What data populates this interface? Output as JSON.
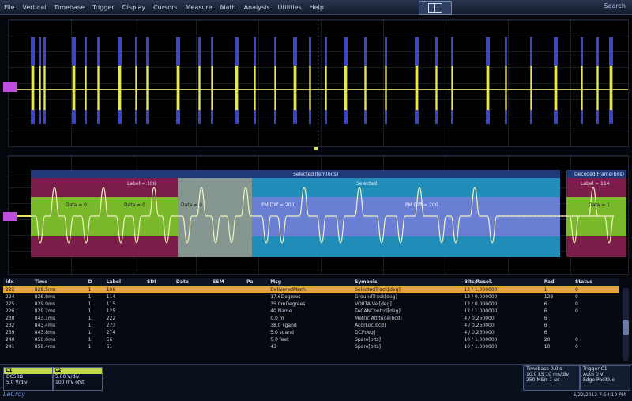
{
  "menu": {
    "items": [
      "File",
      "Vertical",
      "Timebase",
      "Trigger",
      "Display",
      "Cursors",
      "Measure",
      "Math",
      "Analysis",
      "Utilities",
      "Help"
    ],
    "search": "Search"
  },
  "colors": {
    "ch1": "#e6e65a",
    "ch2": "#3b46c8",
    "accent": "#e0a63a",
    "marker": "#c04dde"
  },
  "segments": {
    "top_label": "Selected Item[bits]",
    "right_label": "Decoded Frame[bits]",
    "label1": "Label = 106",
    "label2": "Label = 114",
    "data_a": "Data = 0",
    "data_b": "Data = 0",
    "data_c": "Data = 0",
    "data_d": "PM Diff = 200",
    "data_e": "PM Diff = 200",
    "sub_label": "Selected",
    "data_right": "Data = 1"
  },
  "table": {
    "headers": [
      "Idx",
      "Time",
      "D",
      "Label",
      "SDI",
      "Data",
      "SSM",
      "Pa",
      "Msg",
      "Symbols",
      "Bits/Resol.",
      "Pad",
      "Status"
    ],
    "rows": [
      [
        "222",
        "828.5ms",
        "1",
        "106",
        "",
        "",
        "",
        "",
        "DeliveredMach",
        "SelectedTrack[deg]",
        "12 / 1.000000",
        "1",
        "0"
      ],
      [
        "224",
        "828.8ms",
        "1",
        "114",
        "",
        "",
        "",
        "",
        "17.6Degrees",
        "GroundTrack[deg]",
        "12 / 0.000000",
        "128",
        "0"
      ],
      [
        "225",
        "829.0ms",
        "1",
        "115",
        "",
        "",
        "",
        "",
        "35.0mDegrees",
        "VORTA Vel[deg]",
        "12 / 0.000000",
        "6",
        "0"
      ],
      [
        "226",
        "829.2ms",
        "1",
        "125",
        "",
        "",
        "",
        "",
        "40 Name",
        "TACANControl[deg]",
        "12 / 1.000000",
        "6",
        "0"
      ],
      [
        "230",
        "843.1ms",
        "1",
        "222",
        "",
        "",
        "",
        "",
        "0.0 m",
        "Metric Altitude[bcd]",
        "4 / 0.250000",
        "6",
        ""
      ],
      [
        "232",
        "843.4ms",
        "1",
        "273",
        "",
        "",
        "",
        "",
        "38.0 sgand",
        "AcqrLoc[bcd]",
        "4 / 0.250000",
        "6",
        ""
      ],
      [
        "239",
        "843.8ms",
        "1",
        "274",
        "",
        "",
        "",
        "",
        "5.0 sgand",
        "DCPdeg]",
        "4 / 0.250000",
        "6",
        ""
      ],
      [
        "240",
        "850.0ms",
        "1",
        "56",
        "",
        "",
        "",
        "",
        "5.0 feet",
        "Spare[bits]",
        "10 / 1.000000",
        "20",
        "0"
      ],
      [
        "241",
        "858.4ms",
        "1",
        "61",
        "",
        "",
        "",
        "",
        "43",
        "Spare[bits]",
        "10 / 1.000000",
        "10",
        "0"
      ]
    ]
  },
  "channels": [
    {
      "name": "C1",
      "line1": "DC50Ω",
      "line2": "5.0 V/div",
      "line3": "0 mV ofst"
    },
    {
      "name": "C2",
      "line1": "DC50Ω",
      "line2": "5.00 V/div",
      "line3": "100 mV ofst"
    }
  ],
  "timebase": {
    "title": "Timebase",
    "v1": "0.0 s",
    "v2": "10.0 kS",
    "v3": "250 MS/s",
    "v4": "10 ms/div",
    "v5": "1 us"
  },
  "trigger": {
    "title": "Trigger",
    "v1": "C1",
    "v2": "Auto",
    "v3": "Edge",
    "v4": "0 V",
    "v5": "Positive"
  },
  "brand": "LeCroy",
  "timestamp": "5/22/2012 7:54:19 PM"
}
